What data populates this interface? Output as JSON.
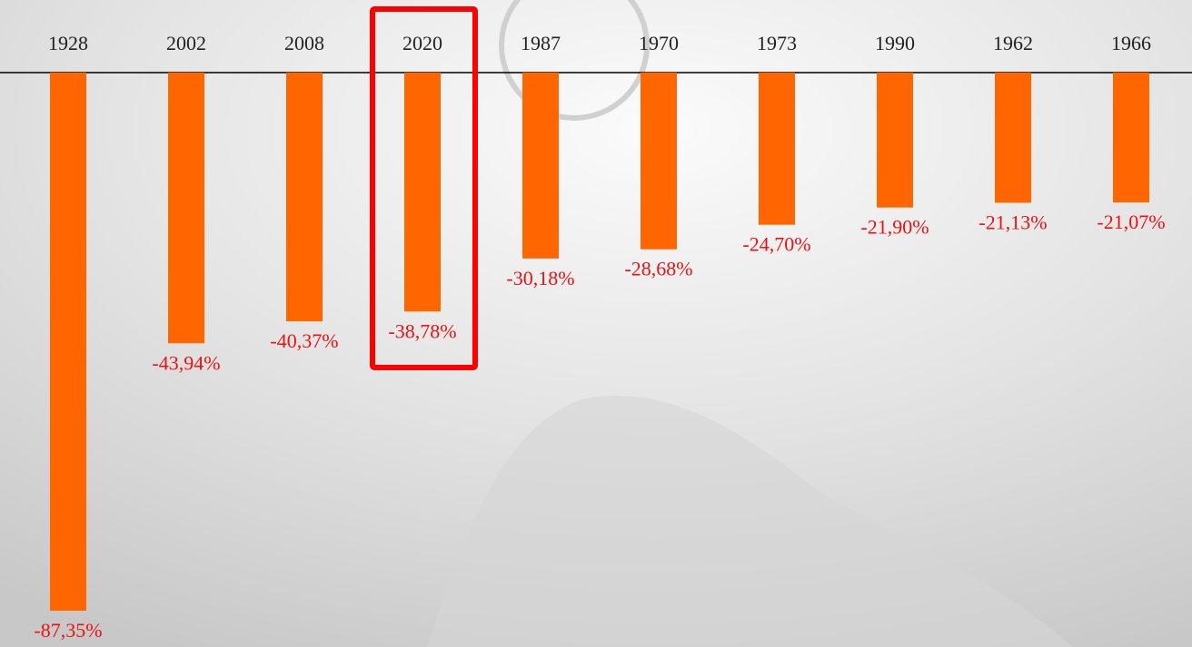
{
  "chart_data": {
    "type": "bar",
    "categories": [
      "1928",
      "2002",
      "2008",
      "2020",
      "1987",
      "1970",
      "1973",
      "1990",
      "1962",
      "1966"
    ],
    "values": [
      -87.35,
      -43.94,
      -40.37,
      -38.78,
      -30.18,
      -28.68,
      -24.7,
      -21.9,
      -21.13,
      -21.07
    ],
    "value_labels": [
      "-87,35%",
      "-43,94%",
      "-40,37%",
      "-38,78%",
      "-30,18%",
      "-28,68%",
      "-24,70%",
      "-21,90%",
      "-21,13%",
      "-21,07%"
    ],
    "color": "#ff6600",
    "label_color": "#ee1111"
  }
}
